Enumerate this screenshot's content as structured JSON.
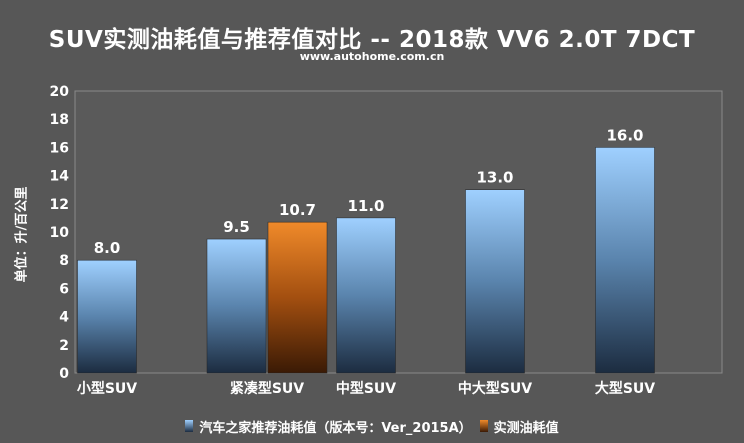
{
  "title": "SUV实测油耗值与推荐值对比 -- 2018款 VV6 2.0T 7DCT",
  "subtitle": "www.autohome.com.cn",
  "chart_data": {
    "type": "bar",
    "title": "SUV实测油耗值与推荐值对比 -- 2018款 VV6 2.0T 7DCT",
    "ylabel": "单位：升/百公里",
    "xlabel": "",
    "ylim": [
      0,
      20
    ],
    "yticks": [
      "0",
      "2",
      "4",
      "6",
      "8",
      "10",
      "12",
      "14",
      "16",
      "18",
      "20"
    ],
    "categories": [
      "小型SUV",
      "紧凑型SUV",
      "中型SUV",
      "中大型SUV",
      "大型SUV"
    ],
    "series": [
      {
        "name": "汽车之家推荐油耗值（版本号：Ver_2015A）",
        "values": [
          8.0,
          9.5,
          11.0,
          13.0,
          16.0
        ],
        "labels": [
          "8.0",
          "9.5",
          "11.0",
          "13.0",
          "16.0"
        ],
        "color": "#8fc3f5"
      },
      {
        "name": "实测油耗值",
        "values": [
          null,
          10.7,
          null,
          null,
          null
        ],
        "labels": [
          "",
          "10.7",
          "",
          "",
          ""
        ],
        "color": "#e7791a"
      }
    ],
    "grid": false,
    "legend": "bottom"
  }
}
